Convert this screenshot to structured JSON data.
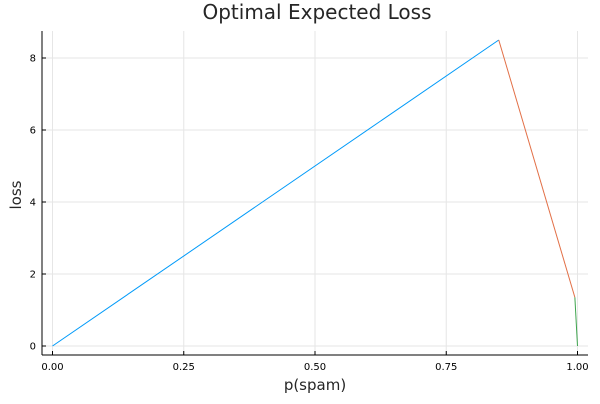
{
  "chart_data": {
    "type": "line",
    "title": "Optimal Expected Loss",
    "xlabel": "p(spam)",
    "ylabel": "loss",
    "xlim": [
      -0.02,
      1.02
    ],
    "ylim": [
      -0.25,
      8.75
    ],
    "grid": true,
    "legend": "none",
    "x_ticks": [
      0.0,
      0.25,
      0.5,
      0.75,
      1.0
    ],
    "x_tick_labels": [
      "0.00",
      "0.25",
      "0.50",
      "0.75",
      "1.00"
    ],
    "y_ticks": [
      0,
      2,
      4,
      6,
      8
    ],
    "y_tick_labels": [
      "0",
      "2",
      "4",
      "6",
      "8"
    ],
    "series": [
      {
        "color": "#009af9",
        "points": [
          [
            0.0,
            0.0
          ],
          [
            0.85,
            8.5
          ]
        ]
      },
      {
        "color": "#e26f46",
        "points": [
          [
            0.85,
            8.5
          ],
          [
            0.995,
            1.35
          ]
        ]
      },
      {
        "color": "#3da44d",
        "points": [
          [
            0.995,
            1.35
          ],
          [
            1.0,
            0.0
          ]
        ]
      }
    ]
  }
}
